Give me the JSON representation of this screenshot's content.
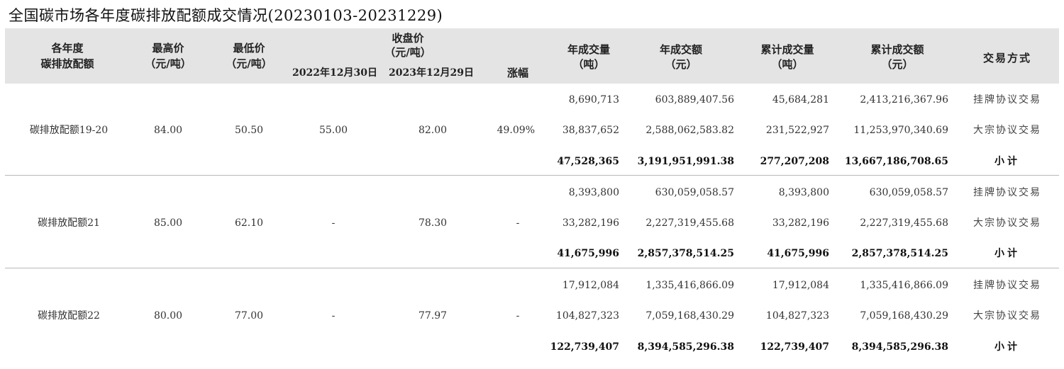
{
  "title": "全国碳市场各年度碳排放配额成交情况(20230103-20231229)",
  "headers": {
    "year": [
      "各年度",
      "碳排放配额"
    ],
    "high": [
      "最高价",
      "（元/吨）"
    ],
    "low": [
      "最低价",
      "（元/吨）"
    ],
    "close": [
      "收盘价",
      "（元/吨）"
    ],
    "close_prev": "2022年12月30日",
    "close_curr": "2023年12月29日",
    "change": "涨幅",
    "annual_volume": [
      "年成交量",
      "（吨）"
    ],
    "annual_amount": [
      "年成交额",
      "（元）"
    ],
    "cum_volume": [
      "累计成交量",
      "（吨）"
    ],
    "cum_amount": [
      "累计成交额",
      "（元）"
    ],
    "method": "交易方式"
  },
  "groups": [
    {
      "name": "碳排放配额19-20",
      "high": "84.00",
      "low": "50.50",
      "close_prev": "55.00",
      "close_curr": "82.00",
      "change": "49.09%",
      "rows": [
        {
          "annual_volume": "8,690,713",
          "annual_amount": "603,889,407.56",
          "cum_volume": "45,684,281",
          "cum_amount": "2,413,216,367.96",
          "method": "挂牌协议交易"
        },
        {
          "annual_volume": "38,837,652",
          "annual_amount": "2,588,062,583.82",
          "cum_volume": "231,522,927",
          "cum_amount": "11,253,970,340.69",
          "method": "大宗协议交易"
        },
        {
          "annual_volume": "47,528,365",
          "annual_amount": "3,191,951,991.38",
          "cum_volume": "277,207,208",
          "cum_amount": "13,667,186,708.65",
          "method": "小计"
        }
      ]
    },
    {
      "name": "碳排放配额21",
      "high": "85.00",
      "low": "62.10",
      "close_prev": "-",
      "close_curr": "78.30",
      "change": "-",
      "rows": [
        {
          "annual_volume": "8,393,800",
          "annual_amount": "630,059,058.57",
          "cum_volume": "8,393,800",
          "cum_amount": "630,059,058.57",
          "method": "挂牌协议交易"
        },
        {
          "annual_volume": "33,282,196",
          "annual_amount": "2,227,319,455.68",
          "cum_volume": "33,282,196",
          "cum_amount": "2,227,319,455.68",
          "method": "大宗协议交易"
        },
        {
          "annual_volume": "41,675,996",
          "annual_amount": "2,857,378,514.25",
          "cum_volume": "41,675,996",
          "cum_amount": "2,857,378,514.25",
          "method": "小计"
        }
      ]
    },
    {
      "name": "碳排放配额22",
      "high": "80.00",
      "low": "77.00",
      "close_prev": "-",
      "close_curr": "77.97",
      "change": "-",
      "rows": [
        {
          "annual_volume": "17,912,084",
          "annual_amount": "1,335,416,866.09",
          "cum_volume": "17,912,084",
          "cum_amount": "1,335,416,866.09",
          "method": "挂牌协议交易"
        },
        {
          "annual_volume": "104,827,323",
          "annual_amount": "7,059,168,430.29",
          "cum_volume": "104,827,323",
          "cum_amount": "7,059,168,430.29",
          "method": "大宗协议交易"
        },
        {
          "annual_volume": "122,739,407",
          "annual_amount": "8,394,585,296.38",
          "cum_volume": "122,739,407",
          "cum_amount": "8,394,585,296.38",
          "method": "小计"
        }
      ]
    }
  ]
}
